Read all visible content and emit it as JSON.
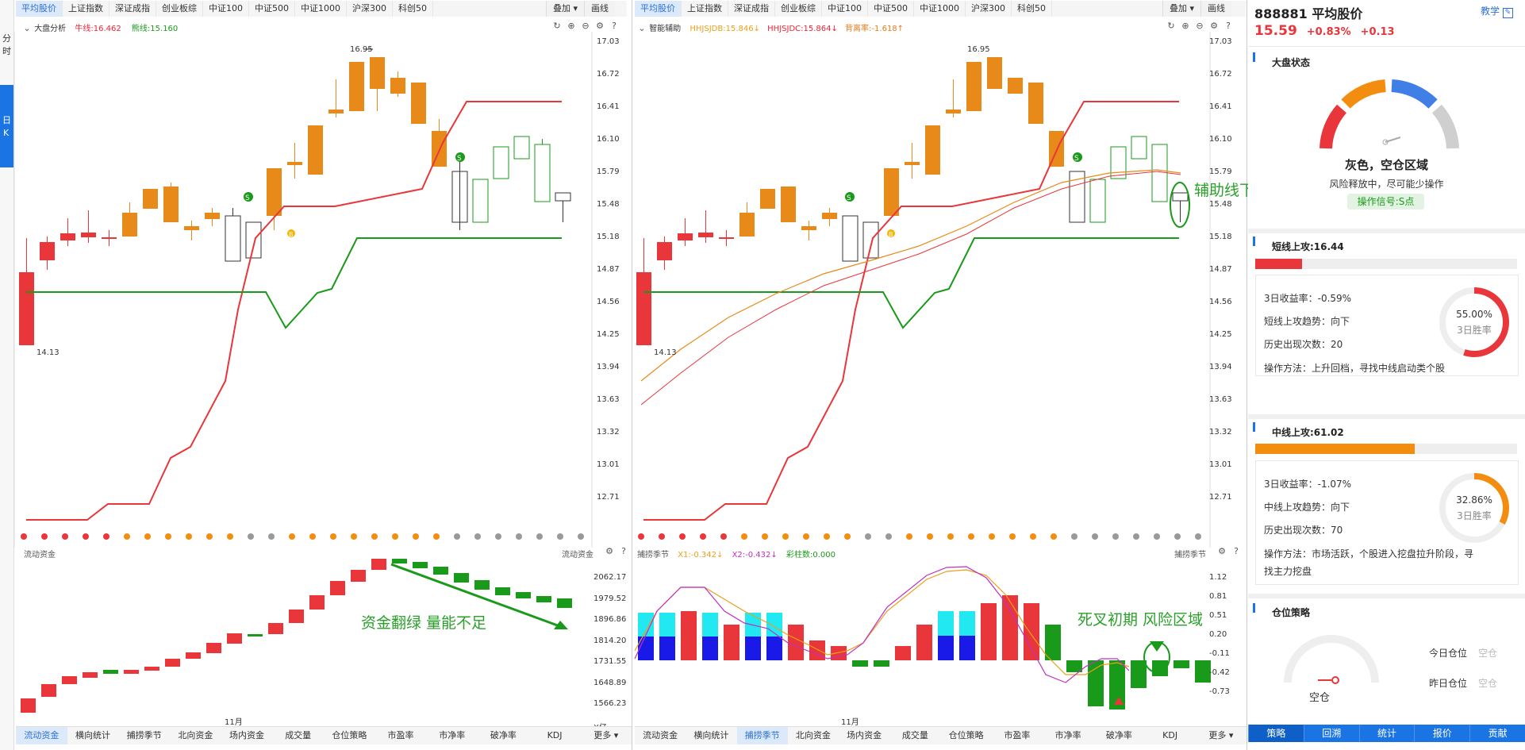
{
  "side": {
    "fen": "分",
    "shi": "时",
    "ri": "日",
    "k": "K"
  },
  "left_tabs": [
    "平均股价",
    "上证指数",
    "深证成指",
    "创业板综",
    "中证100",
    "中证500",
    "中证1000",
    "沪深300",
    "科创50"
  ],
  "right_tabs": [
    "平均股价",
    "上证指数",
    "深证成指",
    "创业板综",
    "中证100",
    "中证500",
    "中证1000",
    "沪深300",
    "科创50"
  ],
  "tab_buttons": {
    "overlay": "叠加 ▾",
    "draw": "画线"
  },
  "left_chart": {
    "indicator": "大盘分析",
    "bull": "牛线:16.462",
    "bear": "熊线:15.160",
    "high_label": "16.95",
    "low_label": "14.13",
    "axis": [
      "17.03",
      "16.72",
      "16.41",
      "16.10",
      "15.79",
      "15.48",
      "15.18",
      "14.87",
      "14.56",
      "14.25",
      "13.94",
      "13.63",
      "13.32",
      "13.01",
      "12.71"
    ]
  },
  "right_chart": {
    "indicator": "智能辅助",
    "hhjsjdb": "HHJSJDB:15.846↓",
    "hhjsjdc": "HHJSJDC:15.864↓",
    "deviation": "背离率:-1.618↑",
    "high_label": "16.95",
    "low_label": "14.13",
    "annotation": "辅助线下"
  },
  "left_sub": {
    "title": "流动资金",
    "title_right": "流动资金",
    "axis": [
      "2062.17",
      "1979.52",
      "1896.86",
      "1814.20",
      "1731.55",
      "1648.89",
      "1566.23",
      "X亿"
    ],
    "annotation": "资金翻绿 量能不足",
    "month": "11月"
  },
  "right_sub": {
    "title": "捕捞季节",
    "x1": "X1:-0.342↓",
    "x2": "X2:-0.432↓",
    "color_count": "彩柱数:0.000",
    "title_right": "捕捞季节",
    "axis": [
      "1.12",
      "0.81",
      "0.51",
      "0.20",
      "-0.11",
      "-0.42",
      "-0.73"
    ],
    "annotation": "死叉初期 风险区域",
    "month": "11月"
  },
  "bottom_tabs_left": [
    "流动资金",
    "横向统计",
    "捕捞季节",
    "北向资金",
    "场内资金",
    "成交量",
    "仓位策略",
    "市盈率",
    "市净率",
    "破净率",
    "KDJ",
    "更多 ▾"
  ],
  "bottom_tabs_right": [
    "流动资金",
    "横向统计",
    "捕捞季节",
    "北向资金",
    "场内资金",
    "成交量",
    "仓位策略",
    "市盈率",
    "市净率",
    "破净率",
    "KDJ",
    "更多 ▾"
  ],
  "stock": {
    "code_name": "888881 平均股价",
    "price": "15.59",
    "pct": "+0.83%",
    "chg": "+0.13",
    "teach": "教学"
  },
  "market_state": {
    "title": "大盘状态",
    "state": "灰色，空仓区域",
    "desc": "风险释放中，尽可能少操作",
    "signal": "操作信号:S点"
  },
  "short_attack": {
    "title": "短线上攻:16.44",
    "ret3": "3日收益率：-0.59%",
    "trend": "短线上攻趋势：向下",
    "count": "历史出现次数：20",
    "method": "操作方法：上升回档，寻找中线启动类个股",
    "win": "55.00%",
    "win_label": "3日胜率",
    "win_value": 55.0,
    "bar_fill": 0.18
  },
  "mid_attack": {
    "title": "中线上攻:61.02",
    "ret3": "3日收益率：-1.07%",
    "trend": "中线上攻趋势：向下",
    "count": "历史出现次数：70",
    "method1": "操作方法：市场活跃，个股进入挖盘拉升阶段，寻",
    "method2": "找主力挖盘",
    "win": "32.86%",
    "win_label": "3日胜率",
    "win_value": 32.86,
    "bar_fill": 0.61
  },
  "position": {
    "title": "仓位策略",
    "gauge_label": "空仓",
    "today": "今日仓位",
    "today_val": "空仓",
    "yesterday": "昨日仓位",
    "yesterday_val": "空仓"
  },
  "right_bottom_tabs": [
    "策略",
    "回溯",
    "统计",
    "报价",
    "贡献"
  ]
}
